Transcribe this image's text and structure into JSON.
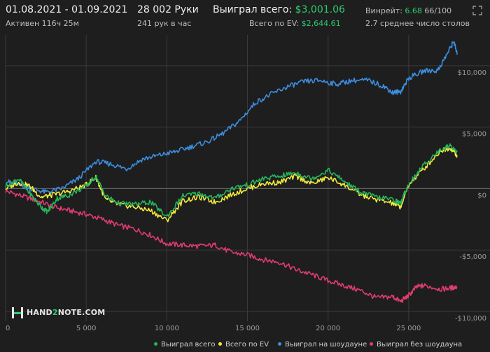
{
  "header": {
    "date_range": "01.08.2021 - 01.09.2021",
    "active_time": "Активен 116ч 25м",
    "hands": "28 002 Руки",
    "hands_per_hour": "241 рук в час",
    "won_total_label": "Выиграл всего:",
    "won_total_value": "$3,001.06",
    "ev_total_label": "Всего по EV:",
    "ev_total_value": "$2,644.61",
    "winrate_label": "Винрейт:",
    "winrate_value": "6.68",
    "winrate_suffix": "66/100",
    "tables_avg": "2.7 среднее число столов"
  },
  "logo": {
    "pre": "HAND",
    "num": "2",
    "post": "NOTE.COM"
  },
  "colors": {
    "won_total": "#27b35e",
    "ev": "#f2e93b",
    "showdown": "#3c8ee0",
    "non_showdown": "#e03c6e",
    "background": "#1e1e1e",
    "grid": "#3a3a3a",
    "zero_line": "#6a6a6a"
  },
  "chart_data": {
    "type": "line",
    "xlim": [
      0,
      28002
    ],
    "ylim": [
      -10800,
      12500
    ],
    "x_ticks": [
      {
        "value": 0,
        "label": "0"
      },
      {
        "value": 5000,
        "label": "5 000"
      },
      {
        "value": 10000,
        "label": "10 000"
      },
      {
        "value": 15000,
        "label": "15 000"
      },
      {
        "value": 20000,
        "label": "20 000"
      },
      {
        "value": 25000,
        "label": "25 000"
      }
    ],
    "y_ticks": [
      {
        "value": 10000,
        "label": "$10,000"
      },
      {
        "value": 5000,
        "label": "$5,000"
      },
      {
        "value": 0,
        "label": "$0"
      },
      {
        "value": -5000,
        "label": "-$5,000"
      },
      {
        "value": -10000,
        "label": "-$10,000"
      }
    ],
    "legend_position": "bottom",
    "series": [
      {
        "key": "won_total",
        "name": "Выиграл всего",
        "x": [
          0,
          800,
          1500,
          2200,
          2600,
          3200,
          4000,
          5000,
          5600,
          6200,
          7000,
          8000,
          9000,
          10000,
          11000,
          12000,
          13000,
          14000,
          15000,
          16000,
          17000,
          18000,
          19000,
          20000,
          21000,
          22000,
          23000,
          24000,
          24500,
          25000,
          26000,
          27000,
          27600,
          28002
        ],
        "y": [
          200,
          800,
          -400,
          -1500,
          -1900,
          -800,
          -500,
          200,
          1000,
          -600,
          -1200,
          -1300,
          -1100,
          -2300,
          -600,
          -400,
          -800,
          0,
          300,
          800,
          1000,
          1300,
          800,
          1500,
          600,
          -300,
          -700,
          -900,
          -1200,
          400,
          2000,
          3200,
          3500,
          3000
        ]
      },
      {
        "key": "ev",
        "name": "Всего по EV",
        "x": [
          0,
          800,
          1500,
          2200,
          3000,
          4000,
          5000,
          5600,
          6200,
          7000,
          8000,
          9000,
          10000,
          11000,
          12000,
          13000,
          14000,
          15000,
          16000,
          17000,
          18000,
          19000,
          20000,
          21000,
          22000,
          23000,
          24000,
          24500,
          25000,
          26000,
          27000,
          27600,
          28002
        ],
        "y": [
          0,
          500,
          200,
          -700,
          -500,
          -200,
          300,
          900,
          -900,
          -1300,
          -1500,
          -1800,
          -2600,
          -1000,
          -700,
          -1100,
          -500,
          0,
          400,
          500,
          1000,
          400,
          900,
          300,
          -500,
          -900,
          -1200,
          -1500,
          300,
          1700,
          3100,
          3300,
          2700
        ]
      },
      {
        "key": "showdown",
        "name": "Выиграл на шоудауне",
        "x": [
          0,
          800,
          1600,
          2500,
          3500,
          4500,
          5600,
          6500,
          7500,
          8500,
          9500,
          10500,
          11500,
          12500,
          13500,
          14500,
          15500,
          16500,
          17500,
          18500,
          19500,
          20500,
          21500,
          22500,
          23500,
          24000,
          24500,
          25000,
          26000,
          26800,
          27400,
          27800,
          28002
        ],
        "y": [
          600,
          300,
          0,
          -300,
          0,
          800,
          2200,
          2000,
          1600,
          2400,
          2700,
          3000,
          3400,
          3800,
          4500,
          5500,
          7000,
          7700,
          8300,
          8700,
          8800,
          8500,
          8800,
          8800,
          8300,
          7800,
          7900,
          9000,
          9600,
          9600,
          11000,
          12000,
          10900
        ]
      },
      {
        "key": "non_showdown",
        "name": "Выиграл без шоудауна",
        "x": [
          0,
          1000,
          2000,
          3000,
          4000,
          5000,
          6000,
          7000,
          8000,
          9000,
          10000,
          11000,
          12000,
          13000,
          14000,
          15000,
          16000,
          17000,
          18000,
          19000,
          20000,
          21000,
          22000,
          23000,
          24000,
          24500,
          25000,
          25500,
          26000,
          27000,
          27600,
          28002
        ],
        "y": [
          -200,
          -600,
          -1000,
          -1500,
          -1800,
          -2100,
          -2500,
          -3000,
          -3300,
          -3800,
          -4500,
          -4600,
          -4700,
          -4600,
          -5200,
          -5400,
          -5800,
          -6000,
          -6600,
          -7000,
          -7500,
          -7900,
          -8300,
          -8900,
          -8800,
          -9200,
          -8700,
          -8000,
          -7900,
          -8200,
          -8100,
          -8000
        ]
      }
    ]
  }
}
